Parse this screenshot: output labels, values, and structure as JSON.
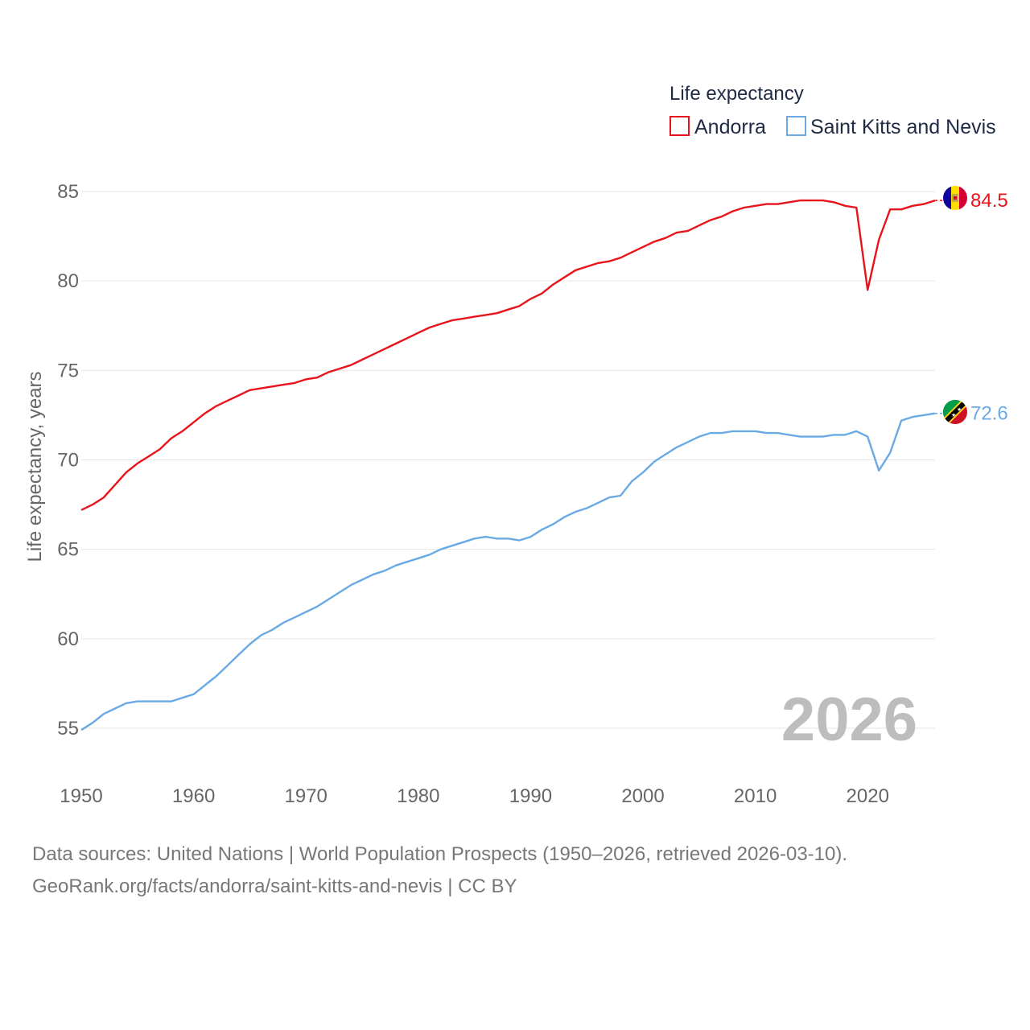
{
  "legend": {
    "title": "Life expectancy",
    "items": [
      {
        "label": "Andorra",
        "color": "#e8141b"
      },
      {
        "label": "Saint Kitts and Nevis",
        "color": "#6aaae4"
      }
    ]
  },
  "watermark_year": "2026",
  "sources": {
    "line1": "Data sources: United Nations | World Population Prospects (1950–2026, retrieved 2026-03-10).",
    "line2": "GeoRank.org/facts/andorra/saint-kitts-and-nevis | CC BY"
  },
  "chart_data": {
    "type": "line",
    "title": "Life expectancy",
    "xlabel": "",
    "ylabel": "Life expectancy, years",
    "xlim": [
      1950,
      2026
    ],
    "ylim": [
      53,
      86
    ],
    "grid": true,
    "legend_position": "top-right",
    "x_ticks": [
      1950,
      1960,
      1970,
      1980,
      1990,
      2000,
      2010,
      2020
    ],
    "y_ticks": [
      55,
      60,
      65,
      70,
      75,
      80,
      85
    ],
    "x": [
      1950,
      1951,
      1952,
      1953,
      1954,
      1955,
      1956,
      1957,
      1958,
      1959,
      1960,
      1961,
      1962,
      1963,
      1964,
      1965,
      1966,
      1967,
      1968,
      1969,
      1970,
      1971,
      1972,
      1973,
      1974,
      1975,
      1976,
      1977,
      1978,
      1979,
      1980,
      1981,
      1982,
      1983,
      1984,
      1985,
      1986,
      1987,
      1988,
      1989,
      1990,
      1991,
      1992,
      1993,
      1994,
      1995,
      1996,
      1997,
      1998,
      1999,
      2000,
      2001,
      2002,
      2003,
      2004,
      2005,
      2006,
      2007,
      2008,
      2009,
      2010,
      2011,
      2012,
      2013,
      2014,
      2015,
      2016,
      2017,
      2018,
      2019,
      2020,
      2021,
      2022,
      2023,
      2024,
      2025,
      2026
    ],
    "series": [
      {
        "name": "Andorra",
        "color": "#e8141b",
        "end_label": "84.5",
        "flag": "andorra-flag-icon",
        "values": [
          67.2,
          67.5,
          67.9,
          68.6,
          69.3,
          69.8,
          70.2,
          70.6,
          71.2,
          71.6,
          72.1,
          72.6,
          73.0,
          73.3,
          73.6,
          73.9,
          74.0,
          74.1,
          74.2,
          74.3,
          74.5,
          74.6,
          74.9,
          75.1,
          75.3,
          75.6,
          75.9,
          76.2,
          76.5,
          76.8,
          77.1,
          77.4,
          77.6,
          77.8,
          77.9,
          78.0,
          78.1,
          78.2,
          78.4,
          78.6,
          79.0,
          79.3,
          79.8,
          80.2,
          80.6,
          80.8,
          81.0,
          81.1,
          81.3,
          81.6,
          81.9,
          82.2,
          82.4,
          82.7,
          82.8,
          83.1,
          83.4,
          83.6,
          83.9,
          84.1,
          84.2,
          84.3,
          84.3,
          84.4,
          84.5,
          84.5,
          84.5,
          84.4,
          84.2,
          84.1,
          79.5,
          82.3,
          84.0,
          84.0,
          84.2,
          84.3,
          84.5
        ]
      },
      {
        "name": "Saint Kitts and Nevis",
        "color": "#6aaae4",
        "end_label": "72.6",
        "flag": "saint-kitts-and-nevis-flag-icon",
        "values": [
          54.9,
          55.3,
          55.8,
          56.1,
          56.4,
          56.5,
          56.5,
          56.5,
          56.5,
          56.7,
          56.9,
          57.4,
          57.9,
          58.5,
          59.1,
          59.7,
          60.2,
          60.5,
          60.9,
          61.2,
          61.5,
          61.8,
          62.2,
          62.6,
          63.0,
          63.3,
          63.6,
          63.8,
          64.1,
          64.3,
          64.5,
          64.7,
          65.0,
          65.2,
          65.4,
          65.6,
          65.7,
          65.6,
          65.6,
          65.5,
          65.7,
          66.1,
          66.4,
          66.8,
          67.1,
          67.3,
          67.6,
          67.9,
          68.0,
          68.8,
          69.3,
          69.9,
          70.3,
          70.7,
          71.0,
          71.3,
          71.5,
          71.5,
          71.6,
          71.6,
          71.6,
          71.5,
          71.5,
          71.4,
          71.3,
          71.3,
          71.3,
          71.4,
          71.4,
          71.6,
          71.3,
          69.4,
          70.4,
          72.2,
          72.4,
          72.5,
          72.6
        ]
      }
    ]
  }
}
